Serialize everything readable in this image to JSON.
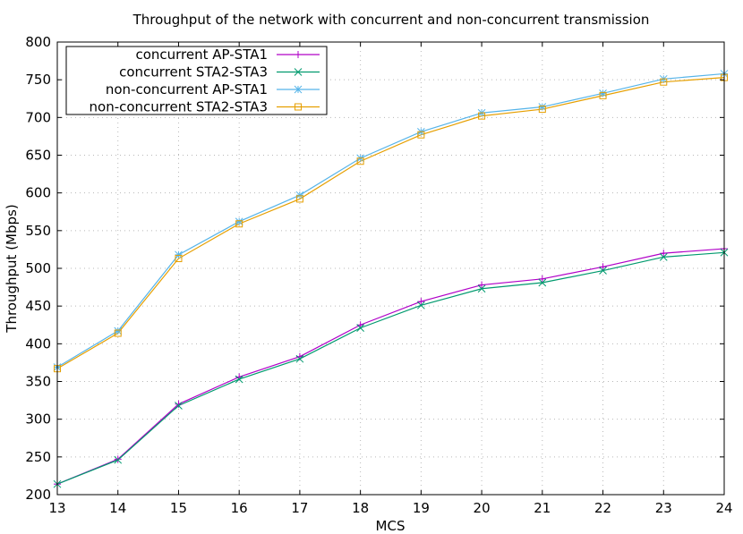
{
  "chart_data": {
    "type": "line",
    "title": "Throughput of the network with concurrent and non-concurrent transmission",
    "xlabel": "MCS",
    "ylabel": "Throughput (Mbps)",
    "xlim": [
      13,
      24
    ],
    "ylim": [
      200,
      800
    ],
    "x": [
      13,
      14,
      15,
      16,
      17,
      18,
      19,
      20,
      21,
      22,
      23,
      24
    ],
    "xticks": [
      "13",
      "14",
      "15",
      "16",
      "17",
      "18",
      "19",
      "20",
      "21",
      "22",
      "23",
      "24"
    ],
    "yticks": [
      "200",
      "250",
      "300",
      "350",
      "400",
      "450",
      "500",
      "550",
      "600",
      "650",
      "700",
      "750",
      "800"
    ],
    "grid": true,
    "legend_position": "top-left",
    "series": [
      {
        "name": "concurrent AP-STA1",
        "color": "#b000c8",
        "marker": "plus",
        "values": [
          214,
          247,
          320,
          356,
          383,
          425,
          456,
          478,
          486,
          502,
          520,
          526
        ]
      },
      {
        "name": "concurrent STA2-STA3",
        "color": "#009a6e",
        "marker": "x",
        "values": [
          214,
          246,
          318,
          353,
          380,
          421,
          451,
          473,
          481,
          497,
          515,
          521
        ]
      },
      {
        "name": "non-concurrent AP-STA1",
        "color": "#56b4e9",
        "marker": "star",
        "values": [
          369,
          417,
          518,
          562,
          597,
          646,
          681,
          706,
          714,
          732,
          751,
          758
        ]
      },
      {
        "name": "non-concurrent STA2-STA3",
        "color": "#e69f00",
        "marker": "square",
        "values": [
          367,
          414,
          513,
          559,
          592,
          642,
          677,
          702,
          711,
          729,
          747,
          753
        ]
      }
    ]
  }
}
